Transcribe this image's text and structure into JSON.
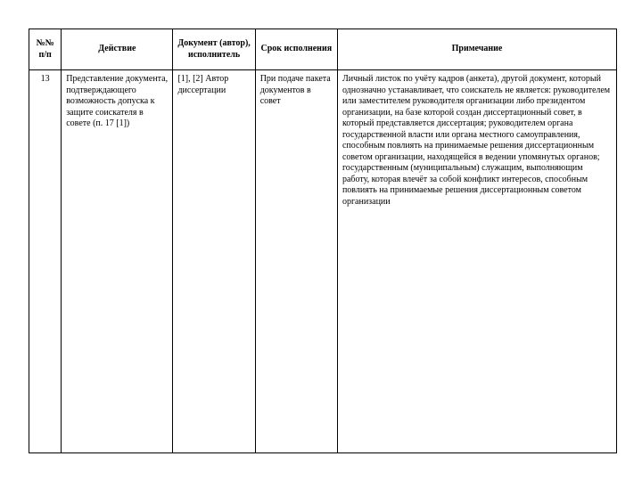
{
  "headers": {
    "num": "№№ п/п",
    "act": "Действие",
    "doc": "Документ (автор), исполнитель",
    "srok": "Срок исполнения",
    "note": "Примечание"
  },
  "row": {
    "num": "13",
    "act": "Представление документа, подтверждающего возможность допуска к защите соискателя в совете (п. 17 [1])",
    "doc": "[1], [2] Автор диссертации",
    "srok": "При подаче пакета документов в совет",
    "note": "Личный листок по учёту кадров (анкета), другой документ, который однозначно устанавливает, что соискатель не является: руководителем или заместителем руководителя организации либо президентом организации, на базе которой создан диссертационный совет, в который представляется диссертация; руководителем органа государственной власти или органа местного самоуправления, способным повлиять на принимаемые решения диссертационным советом организации, находящейся в ведении упомянутых органов; государственным (муниципальным) служащим, выполняющим работу, которая влечёт за собой конфликт интересов, способным повлиять на принимаемые решения диссертационным советом организации"
  }
}
